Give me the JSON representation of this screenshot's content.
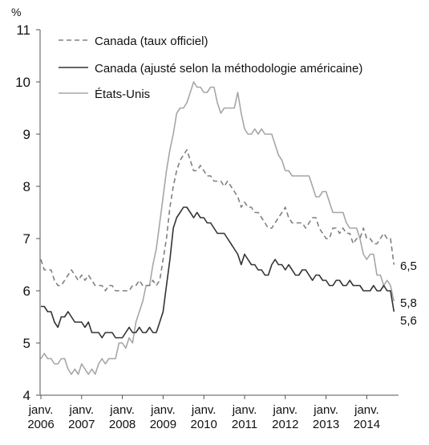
{
  "chart_data": {
    "type": "line",
    "ylabel": "%",
    "ylim": [
      4,
      11
    ],
    "yticks": [
      "4",
      "5",
      "6",
      "7",
      "8",
      "9",
      "10",
      "11"
    ],
    "xticks": [
      {
        "month": "janv.",
        "year": "2006"
      },
      {
        "month": "janv.",
        "year": "2007"
      },
      {
        "month": "janv.",
        "year": "2008"
      },
      {
        "month": "janv.",
        "year": "2009"
      },
      {
        "month": "janv.",
        "year": "2010"
      },
      {
        "month": "janv.",
        "year": "2011"
      },
      {
        "month": "janv.",
        "year": "2012"
      },
      {
        "month": "janv.",
        "year": "2013"
      },
      {
        "month": "janv.",
        "year": "2014"
      }
    ],
    "xstart": "2006-01",
    "xend": "2014-09",
    "grid": false,
    "legend_position": "top-left",
    "series": [
      {
        "name": "Canada (taux officiel)",
        "style": "dashed",
        "color": "#808080",
        "end_label": "6,5",
        "values": [
          6.6,
          6.4,
          6.4,
          6.4,
          6.2,
          6.1,
          6.1,
          6.2,
          6.3,
          6.4,
          6.3,
          6.2,
          6.3,
          6.2,
          6.3,
          6.2,
          6.1,
          6.1,
          6.1,
          6.0,
          6.1,
          6.1,
          6.0,
          6.0,
          6.0,
          6.0,
          6.0,
          6.1,
          6.1,
          6.2,
          6.1,
          6.1,
          6.1,
          6.2,
          6.1,
          6.2,
          6.6,
          7.0,
          7.6,
          8.0,
          8.3,
          8.5,
          8.6,
          8.7,
          8.5,
          8.3,
          8.3,
          8.4,
          8.3,
          8.2,
          8.2,
          8.1,
          8.1,
          8.1,
          8.0,
          8.1,
          8.0,
          7.9,
          7.8,
          7.6,
          7.7,
          7.6,
          7.6,
          7.5,
          7.5,
          7.4,
          7.3,
          7.2,
          7.2,
          7.3,
          7.4,
          7.5,
          7.6,
          7.4,
          7.3,
          7.3,
          7.3,
          7.3,
          7.2,
          7.3,
          7.4,
          7.4,
          7.2,
          7.1,
          7.0,
          7.0,
          7.2,
          7.2,
          7.1,
          7.2,
          7.1,
          7.1,
          6.9,
          7.0,
          7.0,
          7.2,
          7.0,
          7.0,
          6.9,
          6.9,
          7.0,
          7.1,
          7.0,
          7.0,
          6.5
        ]
      },
      {
        "name": "Canada (ajusté selon la méthodologie américaine)",
        "style": "solid",
        "color": "#333333",
        "end_label": "5,6",
        "values": [
          5.7,
          5.7,
          5.6,
          5.6,
          5.4,
          5.3,
          5.5,
          5.5,
          5.6,
          5.5,
          5.4,
          5.4,
          5.4,
          5.3,
          5.4,
          5.2,
          5.2,
          5.2,
          5.1,
          5.2,
          5.2,
          5.2,
          5.1,
          5.1,
          5.1,
          5.2,
          5.3,
          5.2,
          5.2,
          5.3,
          5.2,
          5.2,
          5.3,
          5.2,
          5.2,
          5.4,
          5.6,
          6.1,
          6.6,
          7.2,
          7.4,
          7.5,
          7.6,
          7.6,
          7.5,
          7.4,
          7.5,
          7.4,
          7.4,
          7.3,
          7.3,
          7.2,
          7.1,
          7.1,
          7.1,
          7.0,
          6.9,
          6.8,
          6.7,
          6.5,
          6.7,
          6.6,
          6.5,
          6.5,
          6.4,
          6.4,
          6.3,
          6.3,
          6.5,
          6.6,
          6.5,
          6.5,
          6.4,
          6.5,
          6.4,
          6.3,
          6.3,
          6.4,
          6.4,
          6.3,
          6.2,
          6.3,
          6.3,
          6.2,
          6.2,
          6.1,
          6.1,
          6.2,
          6.2,
          6.1,
          6.1,
          6.2,
          6.1,
          6.1,
          6.1,
          6.0,
          6.0,
          6.0,
          6.1,
          6.0,
          6.0,
          6.1,
          6.0,
          6.0,
          5.6
        ]
      },
      {
        "name": "États-Unis",
        "style": "solid",
        "color": "#a6a6a6",
        "end_label": "5,8",
        "values": [
          4.7,
          4.8,
          4.7,
          4.7,
          4.6,
          4.6,
          4.7,
          4.7,
          4.5,
          4.4,
          4.5,
          4.4,
          4.6,
          4.5,
          4.4,
          4.5,
          4.4,
          4.6,
          4.7,
          4.6,
          4.7,
          4.7,
          4.7,
          5.0,
          5.0,
          4.9,
          5.1,
          5.0,
          5.4,
          5.6,
          5.8,
          6.1,
          6.1,
          6.5,
          6.8,
          7.3,
          7.8,
          8.3,
          8.7,
          9.0,
          9.4,
          9.5,
          9.5,
          9.6,
          9.8,
          10.0,
          9.9,
          9.9,
          9.8,
          9.8,
          9.9,
          9.9,
          9.6,
          9.4,
          9.5,
          9.5,
          9.5,
          9.5,
          9.8,
          9.4,
          9.1,
          9.0,
          9.0,
          9.1,
          9.0,
          9.1,
          9.0,
          9.0,
          9.0,
          8.8,
          8.6,
          8.5,
          8.3,
          8.3,
          8.2,
          8.2,
          8.2,
          8.2,
          8.2,
          8.2,
          8.0,
          7.8,
          7.8,
          7.9,
          7.9,
          7.7,
          7.5,
          7.5,
          7.5,
          7.5,
          7.3,
          7.2,
          7.2,
          7.2,
          7.0,
          6.7,
          6.6,
          6.7,
          6.7,
          6.3,
          6.3,
          6.1,
          6.2,
          6.1,
          5.8
        ]
      }
    ]
  }
}
